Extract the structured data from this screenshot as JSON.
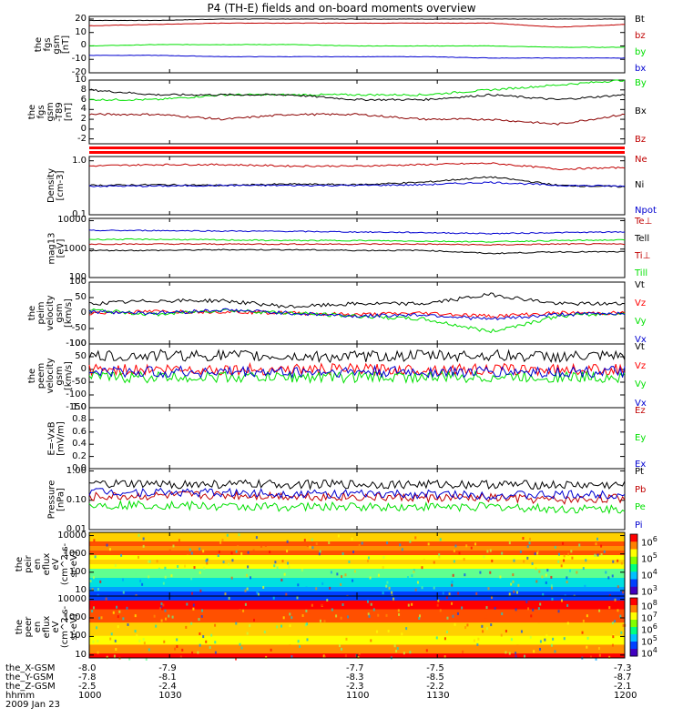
{
  "title": "P4 (TH-E) fields and on-board moments overview",
  "colors": {
    "black": "#000000",
    "red": "#c00000",
    "green": "#00e000",
    "blue": "#0000d0",
    "orange": "#ff0000"
  },
  "footer": {
    "rows": [
      {
        "label": "the_X-GSM",
        "values": [
          "-8.0",
          "-7.9",
          "-7.7",
          "-7.5",
          "-7.3"
        ]
      },
      {
        "label": "the_Y-GSM",
        "values": [
          "-7.8",
          "-8.1",
          "-8.3",
          "-8.5",
          "-8.7"
        ]
      },
      {
        "label": "the_Z-GSM",
        "values": [
          "-2.5",
          "-2.4",
          "-2.3",
          "-2.2",
          "-2.1"
        ]
      },
      {
        "label": "hhmm",
        "values": [
          "1000",
          "1030",
          "1100",
          "1130",
          "1200"
        ]
      }
    ],
    "date": "2009 Jan 23"
  },
  "chart_data": [
    {
      "type": "line",
      "panel": "fgs-gsm",
      "ylabel": [
        "the",
        "fgs",
        "gsm",
        "[nT]"
      ],
      "yticks": [
        "20",
        "10",
        "0",
        "-10",
        "-20"
      ],
      "ylim": [
        -20,
        22
      ],
      "x": [
        1000,
        1015,
        1030,
        1045,
        1100,
        1115,
        1130,
        1145,
        1200
      ],
      "series": [
        {
          "name": "Bt",
          "values": [
            19,
            19,
            20,
            20,
            20,
            20,
            20,
            20,
            20
          ]
        },
        {
          "name": "bz",
          "values": [
            15,
            16,
            17,
            17,
            17,
            17,
            17,
            14,
            16
          ]
        },
        {
          "name": "by",
          "values": [
            0,
            1,
            1,
            1,
            0,
            0,
            0,
            -1,
            -1
          ]
        },
        {
          "name": "bx",
          "values": [
            -7,
            -7,
            -8,
            -8,
            -8,
            -8,
            -9,
            -9,
            -9
          ]
        }
      ]
    },
    {
      "type": "line",
      "panel": "fgs-gsm-t89",
      "ylabel": [
        "the",
        "fgs",
        "gsm",
        "-T89",
        "[nT]"
      ],
      "yticks": [
        "10",
        "8",
        "6",
        "4",
        "2",
        "0",
        "-2"
      ],
      "ylim": [
        -3,
        10
      ],
      "x": [
        1000,
        1015,
        1030,
        1045,
        1100,
        1115,
        1130,
        1145,
        1200
      ],
      "series": [
        {
          "name": "By",
          "values": [
            6,
            6,
            7,
            7,
            7,
            7,
            8,
            9,
            10
          ]
        },
        {
          "name": "Bx",
          "values": [
            8,
            7,
            7,
            7,
            6,
            6,
            7,
            6,
            7
          ]
        },
        {
          "name": "Bz",
          "values": [
            3,
            3,
            2,
            3,
            3,
            2,
            2,
            1,
            3
          ]
        }
      ]
    },
    {
      "type": "line",
      "panel": "density",
      "ylabel": [
        "Density",
        "[cm-3]"
      ],
      "yticks": [
        "1.0",
        "0.1"
      ],
      "ylog": true,
      "ylim": [
        0.1,
        1.2
      ],
      "x": [
        1000,
        1015,
        1030,
        1045,
        1100,
        1115,
        1130,
        1145,
        1200
      ],
      "series": [
        {
          "name": "Ne",
          "values": [
            0.8,
            0.85,
            0.85,
            0.8,
            0.8,
            0.85,
            0.9,
            0.7,
            0.75
          ]
        },
        {
          "name": "Ni",
          "values": [
            0.35,
            0.36,
            0.35,
            0.37,
            0.36,
            0.4,
            0.5,
            0.35,
            0.33
          ]
        },
        {
          "name": "Npot",
          "values": [
            0.34,
            0.34,
            0.35,
            0.35,
            0.35,
            0.36,
            0.4,
            0.35,
            0.34
          ]
        }
      ]
    },
    {
      "type": "line",
      "panel": "temperature",
      "ylabel": [
        "mag13",
        "[eV]"
      ],
      "yticks": [
        "10000",
        "1000",
        "100"
      ],
      "ylog": true,
      "ylim": [
        100,
        12000
      ],
      "x": [
        1000,
        1015,
        1030,
        1045,
        1100,
        1115,
        1130,
        1145,
        1200
      ],
      "series": [
        {
          "name": "Te⊥",
          "values": [
            1500,
            1500,
            1500,
            1500,
            1500,
            1500,
            1400,
            1500,
            1500
          ]
        },
        {
          "name": "Tell",
          "values": [
            900,
            900,
            950,
            950,
            900,
            900,
            700,
            800,
            800
          ]
        },
        {
          "name": "Ti⊥",
          "values": [
            4500,
            4500,
            4300,
            4200,
            4000,
            3800,
            3500,
            3800,
            4000
          ]
        },
        {
          "name": "Till",
          "values": [
            2200,
            2200,
            2100,
            2000,
            2000,
            1900,
            1800,
            2000,
            2100
          ]
        }
      ]
    },
    {
      "type": "line",
      "panel": "peim-velocity",
      "ylabel": [
        "the",
        "peim",
        "velocity",
        "gsm",
        "[km/s]"
      ],
      "yticks": [
        "100",
        "50",
        "0",
        "-50",
        "-100"
      ],
      "ylim": [
        -100,
        100
      ],
      "x": [
        1000,
        1015,
        1030,
        1045,
        1100,
        1115,
        1130,
        1145,
        1200
      ],
      "series": [
        {
          "name": "Vt",
          "values": [
            30,
            40,
            40,
            20,
            30,
            30,
            60,
            30,
            30
          ]
        },
        {
          "name": "Vz",
          "values": [
            0,
            5,
            5,
            0,
            -5,
            0,
            -10,
            0,
            0
          ]
        },
        {
          "name": "Vy",
          "values": [
            10,
            -5,
            10,
            0,
            -10,
            -20,
            -60,
            -10,
            0
          ]
        },
        {
          "name": "Vx",
          "values": [
            5,
            0,
            10,
            0,
            -10,
            -5,
            -20,
            -5,
            0
          ]
        }
      ]
    },
    {
      "type": "line",
      "panel": "peem-velocity",
      "ylabel": [
        "the",
        "peem",
        "velocity",
        "gsm",
        "[km/s]"
      ],
      "yticks": [
        "100",
        "50",
        "0",
        "-50",
        "-100",
        "-150"
      ],
      "ylim": [
        -150,
        100
      ],
      "x": [
        1000,
        1015,
        1030,
        1045,
        1100,
        1115,
        1130,
        1145,
        1200
      ],
      "series": [
        {
          "name": "Vt",
          "values": [
            50,
            55,
            55,
            50,
            50,
            55,
            55,
            50,
            50
          ]
        },
        {
          "name": "Vz",
          "values": [
            0,
            0,
            0,
            0,
            0,
            0,
            0,
            0,
            0
          ]
        },
        {
          "name": "Vy",
          "values": [
            -30,
            -30,
            -30,
            -30,
            -30,
            -30,
            -30,
            -30,
            -30
          ]
        },
        {
          "name": "Vx",
          "values": [
            -10,
            -10,
            -10,
            -10,
            -10,
            -10,
            -10,
            -10,
            -10
          ]
        }
      ]
    },
    {
      "type": "line",
      "panel": "e-field",
      "ylabel": [
        "E=-VxB",
        "[mV/m]"
      ],
      "yticks": [
        "1.0",
        "0.8",
        "0.6",
        "0.4",
        "0.2",
        "0.0"
      ],
      "ylim": [
        0,
        1
      ],
      "series": [
        {
          "name": "Ez",
          "values": []
        },
        {
          "name": "Ey",
          "values": []
        },
        {
          "name": "Ex",
          "values": []
        }
      ]
    },
    {
      "type": "line",
      "panel": "pressure",
      "ylabel": [
        "Pressure",
        "[nPa]"
      ],
      "yticks": [
        "1.00",
        "0.10",
        "0.01"
      ],
      "ylog": true,
      "ylim": [
        0.01,
        1.2
      ],
      "x": [
        1000,
        1015,
        1030,
        1045,
        1100,
        1115,
        1130,
        1145,
        1200
      ],
      "series": [
        {
          "name": "Pt",
          "values": [
            0.35,
            0.35,
            0.35,
            0.35,
            0.35,
            0.35,
            0.35,
            0.33,
            0.33
          ]
        },
        {
          "name": "Pb",
          "values": [
            0.13,
            0.14,
            0.15,
            0.14,
            0.13,
            0.12,
            0.12,
            0.1,
            0.12
          ]
        },
        {
          "name": "Pe",
          "values": [
            0.07,
            0.07,
            0.06,
            0.06,
            0.06,
            0.06,
            0.06,
            0.05,
            0.05
          ]
        },
        {
          "name": "Pi",
          "values": [
            0.2,
            0.19,
            0.18,
            0.17,
            0.16,
            0.16,
            0.15,
            0.15,
            0.16
          ]
        }
      ]
    },
    {
      "type": "heatmap",
      "panel": "peir-en-eflux",
      "ylabel": [
        "the",
        "peir",
        "en",
        "eflux",
        "eV",
        "(cm^2-s-",
        "sr-eV)"
      ],
      "yticks": [
        "10000",
        "1000",
        "100",
        "10"
      ],
      "ylog": true,
      "ylim": [
        5,
        15000
      ],
      "colorbar_ticks": [
        "10^6",
        "10^5",
        "10^4",
        "10^3"
      ]
    },
    {
      "type": "heatmap",
      "panel": "peer-en-eflux",
      "ylabel": [
        "the",
        "peer",
        "en",
        "eflux",
        "eV",
        "(cm^2-s-",
        "sr-eV)"
      ],
      "yticks": [
        "10000",
        "1000",
        "100",
        "10"
      ],
      "ylog": true,
      "ylim": [
        7,
        15000
      ],
      "colorbar_ticks": [
        "10^8",
        "10^7",
        "10^6",
        "10^5",
        "10^4"
      ]
    }
  ]
}
